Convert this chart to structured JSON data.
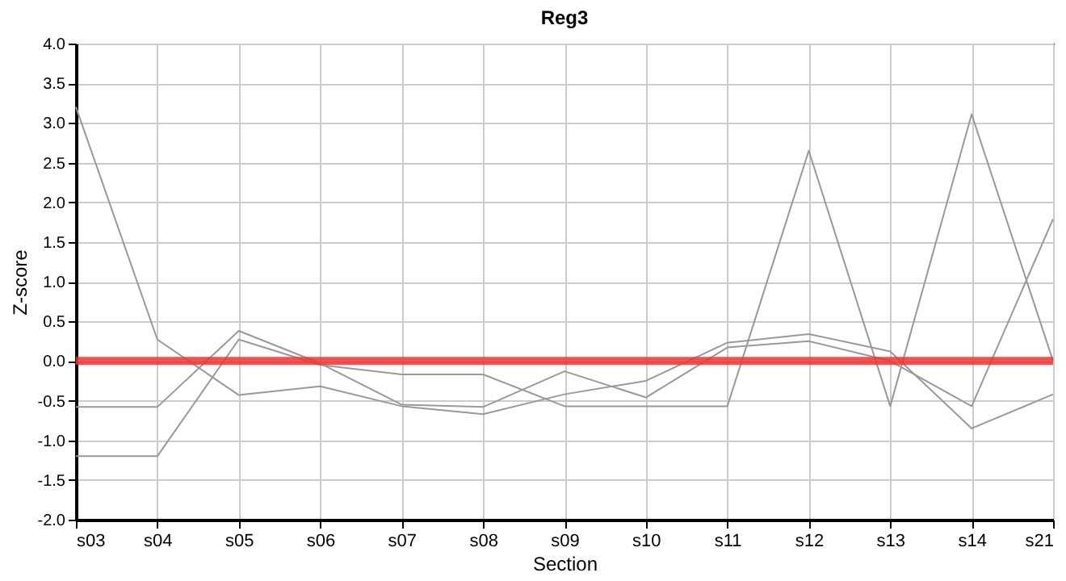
{
  "chart_data": {
    "type": "line",
    "title": "Reg3",
    "xlabel": "Section",
    "ylabel": "Z-score",
    "categories": [
      "s03",
      "s04",
      "s05",
      "s06",
      "s07",
      "s08",
      "s09",
      "s10",
      "s11",
      "s12",
      "s13",
      "s14",
      "s21"
    ],
    "series": [
      {
        "color": "#999999",
        "values": [
          3.2,
          0.27,
          -0.43,
          -0.32,
          -0.57,
          -0.67,
          -0.42,
          -0.25,
          0.23,
          0.34,
          0.12,
          -0.85,
          -0.42
        ]
      },
      {
        "color": "#999999",
        "values": [
          -0.58,
          -0.58,
          0.38,
          -0.03,
          -0.55,
          -0.58,
          -0.13,
          -0.46,
          0.17,
          0.25,
          0.0,
          -0.57,
          1.79
        ]
      },
      {
        "color": "#999999",
        "values": [
          -1.2,
          -1.2,
          0.27,
          -0.05,
          -0.17,
          -0.17,
          -0.57,
          -0.57,
          -0.57,
          2.65,
          -0.57,
          3.11,
          0.0
        ]
      }
    ],
    "ylim": [
      -2.0,
      4.0
    ],
    "yticks": [
      {
        "value": -2,
        "label": "-2.0"
      },
      {
        "value": -1.5,
        "label": "-1.5"
      },
      {
        "value": -1,
        "label": "-1.0"
      },
      {
        "value": -0.5,
        "label": "-0.5"
      },
      {
        "value": 0,
        "label": "0.0"
      },
      {
        "value": 0.5,
        "label": "0.5"
      },
      {
        "value": 1,
        "label": "1.0"
      },
      {
        "value": 1.5,
        "label": "1.5"
      },
      {
        "value": 2,
        "label": "2.0"
      },
      {
        "value": 2.5,
        "label": "2.5"
      },
      {
        "value": 3,
        "label": "3.0"
      },
      {
        "value": 3.5,
        "label": "3.5"
      },
      {
        "value": 4,
        "label": "4.0"
      }
    ],
    "ref_lines": [
      {
        "axis": "y",
        "value": 0,
        "color": "#ee3333"
      }
    ],
    "grid": true,
    "marker": "none",
    "line_style": "solid"
  }
}
